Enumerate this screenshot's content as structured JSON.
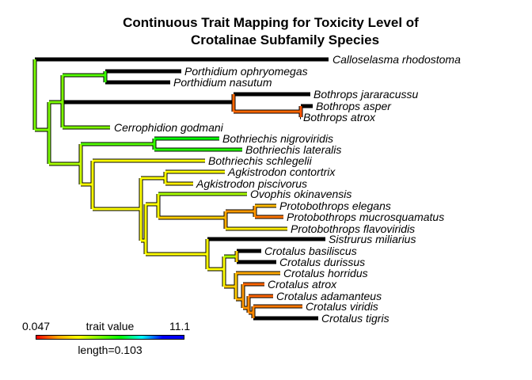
{
  "title_line1": "Continuous Trait Mapping for Toxicity Level of",
  "title_line2": "Crotalinae Subfamily Species",
  "legend": {
    "min_label": "0.047",
    "mid_label": "trait value",
    "max_label": "11.1",
    "length_label": "length=0.103",
    "gradient_colors": [
      "#ff0000",
      "#ffa500",
      "#ffff00",
      "#7cfc00",
      "#00ff00",
      "#00ffff",
      "#0000ff",
      "#0000ff"
    ]
  },
  "tips": [
    {
      "name": "Calloselasma rhodostoma"
    },
    {
      "name": "Porthidium ophryomegas"
    },
    {
      "name": "Porthidium nasutum"
    },
    {
      "name": "Bothrops jararacussu"
    },
    {
      "name": "Bothrops asper"
    },
    {
      "name": "Bothrops atrox"
    },
    {
      "name": "Cerrophidion godmani"
    },
    {
      "name": "Bothriechis nigroviridis"
    },
    {
      "name": "Bothriechis lateralis"
    },
    {
      "name": "Bothriechis schlegelii"
    },
    {
      "name": "Agkistrodon contortrix"
    },
    {
      "name": "Agkistrodon piscivorus"
    },
    {
      "name": "Ovophis okinavensis"
    },
    {
      "name": "Protobothrops elegans"
    },
    {
      "name": "Protobothrops mucrosquamatus"
    },
    {
      "name": "Protobothrops flavoviridis"
    },
    {
      "name": "Sistrurus miliarius"
    },
    {
      "name": "Crotalus basiliscus"
    },
    {
      "name": "Crotalus durissus"
    },
    {
      "name": "Crotalus horridus"
    },
    {
      "name": "Crotalus atrox"
    },
    {
      "name": "Crotalus adamanteus"
    },
    {
      "name": "Crotalus viridis"
    },
    {
      "name": "Crotalus tigris"
    }
  ]
}
